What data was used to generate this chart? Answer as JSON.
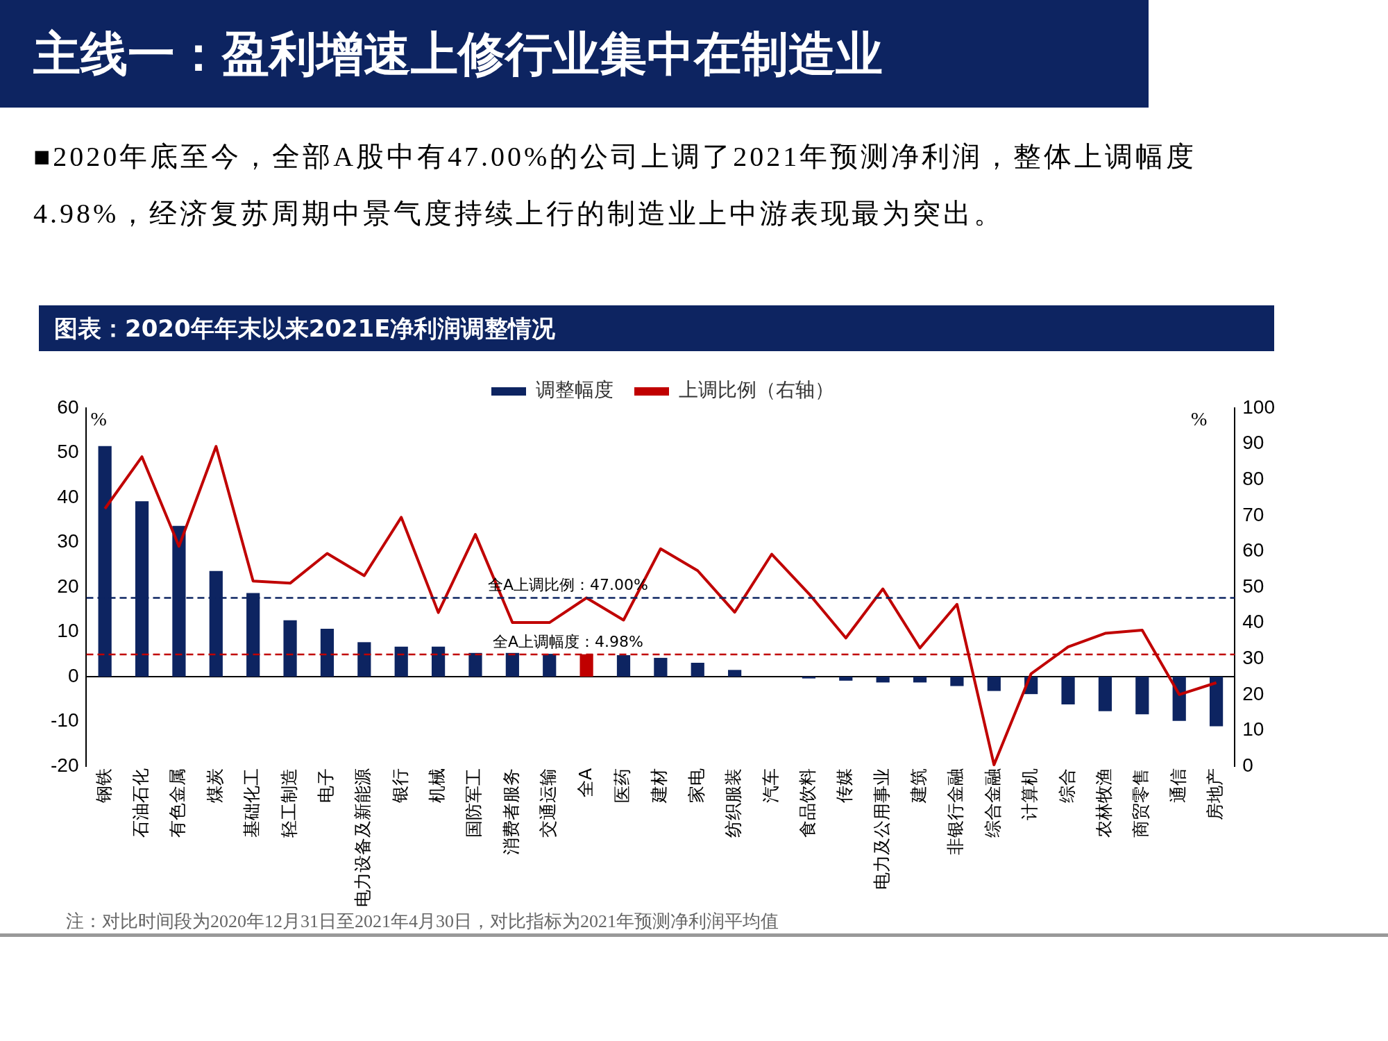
{
  "chart_data": {
    "type": "bar",
    "title": "主线一：盈利增速上修行业集中在制造业",
    "subtitle": "图表：2020年年末以来2021E净利润调整情况",
    "annotations": [
      "■2020年底至今，全部A股中有47.00%的公司上调了2021年预测净利润，整体上调幅度4.98%，经济复苏周期中景气度持续上行的制造业上中游表现最为突出。",
      "注：对比时间段为2020年12月31日至2021年4月30日，对比指标为2021年预测净利润平均值"
    ],
    "categories": [
      "钢铁",
      "石油石化",
      "有色金属",
      "煤炭",
      "基础化工",
      "轻工制造",
      "电子",
      "电力设备及新能源",
      "银行",
      "机械",
      "国防军工",
      "消费者服务",
      "交通运输",
      "全A",
      "医药",
      "建材",
      "家电",
      "纺织服装",
      "汽车",
      "食品饮料",
      "传媒",
      "电力及公用事业",
      "建筑",
      "非银行金融",
      "综合金融",
      "计算机",
      "综合",
      "农林牧渔",
      "商贸零售",
      "通信",
      "房地产"
    ],
    "series": [
      {
        "name": "调整幅度",
        "color": "#0d2461",
        "colors": [
          "#0d2461",
          "#0d2461",
          "#0d2461",
          "#0d2461",
          "#0d2461",
          "#0d2461",
          "#0d2461",
          "#0d2461",
          "#0d2461",
          "#0d2461",
          "#0d2461",
          "#0d2461",
          "#0d2461",
          "#c00000",
          "#0d2461",
          "#0d2461",
          "#0d2461",
          "#0d2461",
          "#0d2461",
          "#0d2461",
          "#0d2461",
          "#0d2461",
          "#0d2461",
          "#0d2461",
          "#0d2461",
          "#0d2461",
          "#0d2461",
          "#0d2461",
          "#0d2461",
          "#0d2461",
          "#0d2461"
        ],
        "values": [
          51.5,
          39.2,
          33.7,
          23.6,
          18.7,
          12.6,
          10.7,
          7.7,
          6.7,
          6.7,
          5.3,
          5.3,
          5.1,
          5.0,
          4.8,
          4.2,
          3.1,
          1.5,
          0,
          -0.4,
          -0.9,
          -1.3,
          -1.3,
          -2.1,
          -3.2,
          -3.9,
          -6.2,
          -7.7,
          -8.4,
          -9.9,
          -11.1
        ]
      },
      {
        "type": "line",
        "name": "上调比例（右轴）",
        "color": "#c00000",
        "axis": "y2",
        "values": [
          71.9,
          86.4,
          61.4,
          89.3,
          51.7,
          51.1,
          59.4,
          53.2,
          69.5,
          42.9,
          64.7,
          40.1,
          40.1,
          47.0,
          40.8,
          60.7,
          54.6,
          43.0,
          59.2,
          48.2,
          35.8,
          49.5,
          33.0,
          45.2,
          0.4,
          25.8,
          33.3,
          37.1,
          38.0,
          20.0,
          23.3
        ]
      }
    ],
    "ylabel": "%",
    "y2label": "%",
    "ylim": [
      -20,
      60
    ],
    "yticks": [
      -20,
      -10,
      0,
      10,
      20,
      30,
      40,
      50,
      60
    ],
    "y2lim": [
      0,
      100
    ],
    "y2ticks": [
      0,
      10,
      20,
      30,
      40,
      50,
      60,
      70,
      80,
      90,
      100
    ],
    "ref_lines": [
      {
        "axis": "y2",
        "value": 47.0,
        "label": "全A上调比例：47.00%",
        "color": "#0d2461",
        "line_style": "dashed"
      },
      {
        "axis": "y",
        "value": 4.98,
        "label": "全A上调幅度：4.98%",
        "color": "#c00000",
        "line_style": "dashed"
      }
    ],
    "legend": "top",
    "marker": "none",
    "line_style": "solid"
  }
}
